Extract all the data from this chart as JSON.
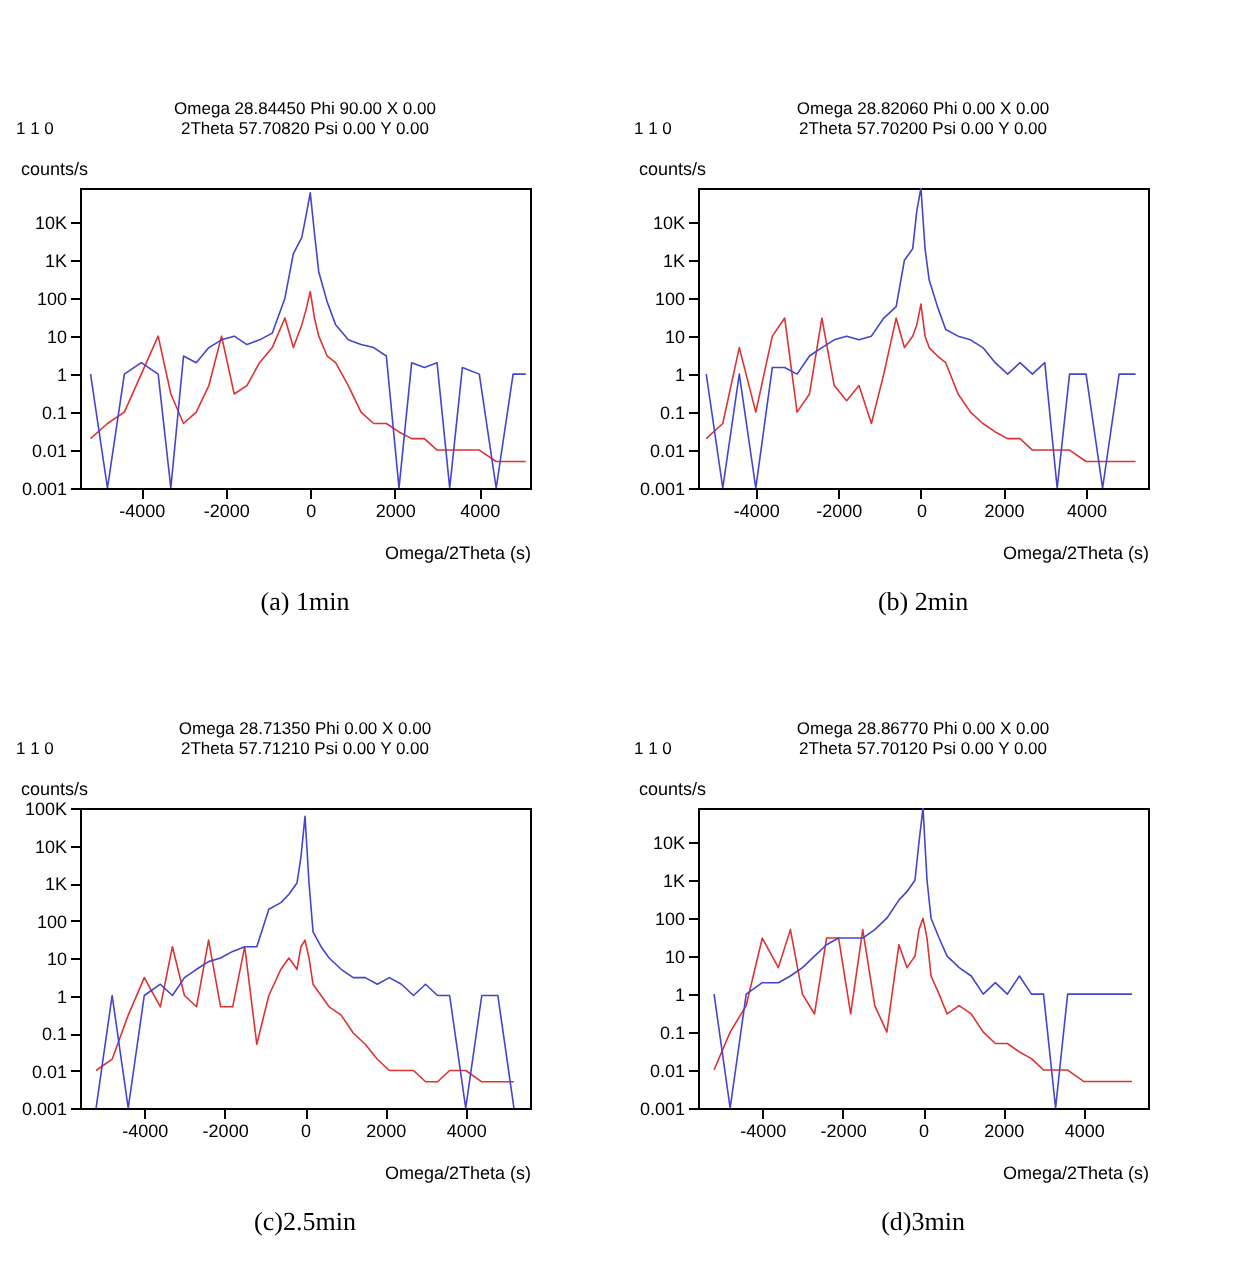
{
  "chart_data": [
    {
      "type": "line",
      "title": "(a) 1min",
      "xlabel": "Omega/2Theta (s)",
      "ylabel": "counts/s",
      "log": "y",
      "grid": false,
      "annotations": [
        "1 1 0",
        "Omega 28.84450    Phi 90.00    X 0.00",
        "2Theta 57.70820    Psi 0.00    Y 0.00"
      ],
      "xlim": [
        -5450,
        5200
      ],
      "xticks": [
        -4000,
        -2000,
        0,
        2000,
        4000
      ],
      "ylim": [
        0.001,
        80000
      ],
      "yticks": [
        {
          "value": 0.001,
          "label": "0.001"
        },
        {
          "value": 0.01,
          "label": "0.01"
        },
        {
          "value": 0.1,
          "label": "0.1"
        },
        {
          "value": 1,
          "label": "1"
        },
        {
          "value": 10,
          "label": "10"
        },
        {
          "value": 100,
          "label": "100"
        },
        {
          "value": 1000,
          "label": "1K"
        },
        {
          "value": 10000,
          "label": "10K"
        }
      ],
      "x": [
        -5200,
        -4800,
        -4400,
        -4000,
        -3600,
        -3300,
        -3000,
        -2700,
        -2400,
        -2100,
        -1800,
        -1500,
        -1200,
        -900,
        -600,
        -400,
        -200,
        -100,
        0,
        100,
        200,
        400,
        600,
        900,
        1200,
        1500,
        1800,
        2100,
        2400,
        2700,
        3000,
        3300,
        3600,
        4000,
        4400,
        4800,
        5100
      ],
      "series": [
        {
          "color": "#dd3333",
          "values": [
            0.02,
            0.05,
            0.1,
            1,
            10,
            0.3,
            0.05,
            0.1,
            0.5,
            10,
            0.3,
            0.5,
            2,
            5,
            30,
            5,
            20,
            50,
            150,
            30,
            10,
            3,
            2,
            0.5,
            0.1,
            0.05,
            0.05,
            0.03,
            0.02,
            0.02,
            0.01,
            0.01,
            0.01,
            0.01,
            0.005,
            0.005,
            0.005
          ]
        },
        {
          "color": "#4444cc",
          "values": [
            1,
            0.001,
            1,
            2,
            1,
            0.001,
            3,
            2,
            5,
            8,
            10,
            6,
            8,
            12,
            100,
            1500,
            4000,
            15000,
            60000,
            5000,
            500,
            80,
            20,
            8,
            6,
            5,
            3,
            0.001,
            2,
            1.5,
            2,
            0.001,
            1.5,
            1,
            0.001,
            1,
            1
          ]
        }
      ]
    },
    {
      "type": "line",
      "title": "(b) 2min",
      "xlabel": "Omega/2Theta (s)",
      "ylabel": "counts/s",
      "log": "y",
      "grid": false,
      "annotations": [
        "1 1 0",
        "Omega 28.82060    Phi 0.00    X 0.00",
        "2Theta 57.70200    Psi 0.00    Y 0.00"
      ],
      "xlim": [
        -5400,
        5500
      ],
      "xticks": [
        -4000,
        -2000,
        0,
        2000,
        4000
      ],
      "ylim": [
        0.001,
        80000
      ],
      "yticks": [
        {
          "value": 0.001,
          "label": "0.001"
        },
        {
          "value": 0.01,
          "label": "0.01"
        },
        {
          "value": 0.1,
          "label": "0.1"
        },
        {
          "value": 1,
          "label": "1"
        },
        {
          "value": 10,
          "label": "10"
        },
        {
          "value": 100,
          "label": "100"
        },
        {
          "value": 1000,
          "label": "1K"
        },
        {
          "value": 10000,
          "label": "10K"
        }
      ],
      "x": [
        -5200,
        -4800,
        -4400,
        -4000,
        -3600,
        -3300,
        -3000,
        -2700,
        -2400,
        -2100,
        -1800,
        -1500,
        -1200,
        -900,
        -600,
        -400,
        -200,
        -100,
        0,
        100,
        200,
        400,
        600,
        900,
        1200,
        1500,
        1800,
        2100,
        2400,
        2700,
        3000,
        3300,
        3600,
        4000,
        4400,
        4800,
        5200
      ],
      "series": [
        {
          "color": "#dd3333",
          "values": [
            0.02,
            0.05,
            5,
            0.1,
            10,
            30,
            0.1,
            0.3,
            30,
            0.5,
            0.2,
            0.5,
            0.05,
            1,
            30,
            5,
            10,
            20,
            70,
            10,
            5,
            3,
            2,
            0.3,
            0.1,
            0.05,
            0.03,
            0.02,
            0.02,
            0.01,
            0.01,
            0.01,
            0.01,
            0.005,
            0.005,
            0.005,
            0.005
          ]
        },
        {
          "color": "#4444cc",
          "values": [
            1,
            0.001,
            1,
            0.001,
            1.5,
            1.5,
            1,
            3,
            5,
            8,
            10,
            8,
            10,
            30,
            60,
            1000,
            2000,
            20000,
            80000,
            2000,
            300,
            60,
            15,
            10,
            8,
            5,
            2,
            1,
            2,
            1,
            2,
            0.001,
            1,
            1,
            0.001,
            1,
            1
          ]
        }
      ]
    },
    {
      "type": "line",
      "title": "(c)2.5min",
      "xlabel": "Omega/2Theta (s)",
      "ylabel": "counts/s",
      "log": "y",
      "grid": false,
      "annotations": [
        "1 1 0",
        "Omega 28.71350    Phi 0.00    X 0.00",
        "2Theta 57.71210    Psi 0.00    Y 0.00"
      ],
      "xlim": [
        -5600,
        5600
      ],
      "xticks": [
        -4000,
        -2000,
        0,
        2000,
        4000
      ],
      "ylim": [
        0.001,
        100000
      ],
      "yticks": [
        {
          "value": 0.001,
          "label": "0.001"
        },
        {
          "value": 0.01,
          "label": "0.01"
        },
        {
          "value": 0.1,
          "label": "0.1"
        },
        {
          "value": 1,
          "label": "1"
        },
        {
          "value": 10,
          "label": "10"
        },
        {
          "value": 100,
          "label": "100"
        },
        {
          "value": 1000,
          "label": "1K"
        },
        {
          "value": 10000,
          "label": "10K"
        },
        {
          "value": 100000,
          "label": "100K"
        }
      ],
      "x": [
        -5200,
        -4800,
        -4400,
        -4000,
        -3600,
        -3300,
        -3000,
        -2700,
        -2400,
        -2100,
        -1800,
        -1500,
        -1200,
        -900,
        -600,
        -400,
        -200,
        -100,
        0,
        100,
        200,
        400,
        600,
        900,
        1200,
        1500,
        1800,
        2100,
        2400,
        2700,
        3000,
        3300,
        3600,
        4000,
        4400,
        4800,
        5200
      ],
      "series": [
        {
          "color": "#dd3333",
          "values": [
            0.01,
            0.02,
            0.3,
            3,
            0.5,
            20,
            1,
            0.5,
            30,
            0.5,
            0.5,
            20,
            0.05,
            1,
            5,
            10,
            5,
            20,
            30,
            10,
            2,
            1,
            0.5,
            0.3,
            0.1,
            0.05,
            0.02,
            0.01,
            0.01,
            0.01,
            0.005,
            0.005,
            0.01,
            0.01,
            0.005,
            0.005,
            0.005
          ]
        },
        {
          "color": "#4444cc",
          "values": [
            0.001,
            1,
            0.001,
            1,
            2,
            1,
            3,
            5,
            8,
            10,
            15,
            20,
            20,
            200,
            300,
            500,
            1000,
            5000,
            60000,
            1000,
            50,
            20,
            10,
            5,
            3,
            3,
            2,
            3,
            2,
            1,
            2,
            1,
            1,
            0.001,
            1,
            1,
            0.001
          ]
        }
      ]
    },
    {
      "type": "line",
      "title": "(d)3min",
      "xlabel": "Omega/2Theta (s)",
      "ylabel": "counts/s",
      "log": "y",
      "grid": false,
      "annotations": [
        "1 1 0",
        "Omega 28.86770    Phi 0.00    X 0.00",
        "2Theta 57.70120    Psi 0.00    Y 0.00"
      ],
      "xlim": [
        -5600,
        5600
      ],
      "xticks": [
        -4000,
        -2000,
        0,
        2000,
        4000
      ],
      "ylim": [
        0.001,
        80000
      ],
      "yticks": [
        {
          "value": 0.001,
          "label": "0.001"
        },
        {
          "value": 0.01,
          "label": "0.01"
        },
        {
          "value": 0.1,
          "label": "0.1"
        },
        {
          "value": 1,
          "label": "1"
        },
        {
          "value": 10,
          "label": "10"
        },
        {
          "value": 100,
          "label": "100"
        },
        {
          "value": 1000,
          "label": "1K"
        },
        {
          "value": 10000,
          "label": "10K"
        }
      ],
      "x": [
        -5200,
        -4800,
        -4400,
        -4000,
        -3600,
        -3300,
        -3000,
        -2700,
        -2400,
        -2100,
        -1800,
        -1500,
        -1200,
        -900,
        -600,
        -400,
        -200,
        -100,
        0,
        100,
        200,
        400,
        600,
        900,
        1200,
        1500,
        1800,
        2100,
        2400,
        2700,
        3000,
        3300,
        3600,
        4000,
        4400,
        4800,
        5200
      ],
      "series": [
        {
          "color": "#dd3333",
          "values": [
            0.01,
            0.1,
            0.5,
            30,
            5,
            50,
            1,
            0.3,
            30,
            30,
            0.3,
            50,
            0.5,
            0.1,
            20,
            5,
            10,
            50,
            100,
            30,
            3,
            1,
            0.3,
            0.5,
            0.3,
            0.1,
            0.05,
            0.05,
            0.03,
            0.02,
            0.01,
            0.01,
            0.01,
            0.005,
            0.005,
            0.005,
            0.005
          ]
        },
        {
          "color": "#4444cc",
          "values": [
            1,
            0.001,
            1,
            2,
            2,
            3,
            5,
            10,
            20,
            30,
            30,
            30,
            50,
            100,
            300,
            500,
            1000,
            10000,
            80000,
            1000,
            100,
            30,
            10,
            5,
            3,
            1,
            2,
            1,
            3,
            1,
            1,
            0.001,
            1,
            1,
            1,
            1,
            1
          ]
        }
      ]
    }
  ]
}
